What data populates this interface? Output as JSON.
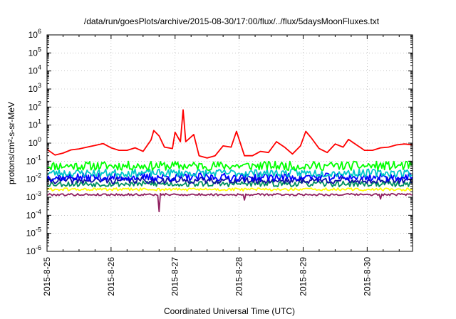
{
  "chart_data": {
    "type": "line",
    "title": "/data/run/goesPlots/archive/2015-08-30/17:00/flux/../flux/5daysMoonFluxes.txt",
    "xlabel": "Coordinated Universal Time (UTC)",
    "ylabel": "protons/cm²-s-sr-MeV",
    "yscale": "log",
    "ylim_exponents": [
      -6,
      6
    ],
    "y_ticks": [
      {
        "base": "10",
        "exp": "-6"
      },
      {
        "base": "10",
        "exp": "-5"
      },
      {
        "base": "10",
        "exp": "-4"
      },
      {
        "base": "10",
        "exp": "-3"
      },
      {
        "base": "10",
        "exp": "-2"
      },
      {
        "base": "10",
        "exp": "-1"
      },
      {
        "base": "10",
        "exp": "0"
      },
      {
        "base": "10",
        "exp": "1"
      },
      {
        "base": "10",
        "exp": "2"
      },
      {
        "base": "10",
        "exp": "3"
      },
      {
        "base": "10",
        "exp": "4"
      },
      {
        "base": "10",
        "exp": "5"
      },
      {
        "base": "10",
        "exp": "6"
      }
    ],
    "x_ticks": [
      "2015-8-25",
      "2015-8-26",
      "2015-8-27",
      "2015-8-28",
      "2015-8-29",
      "2015-8-30"
    ],
    "xlim": [
      "2015-08-25 00:00",
      "2015-08-30 17:00"
    ],
    "grid": true,
    "series": [
      {
        "color": "#ff0000",
        "points": [
          [
            "2015-08-25 00:00",
            0.45
          ],
          [
            "2015-08-25 03:00",
            0.22
          ],
          [
            "2015-08-25 06:00",
            0.28
          ],
          [
            "2015-08-25 09:00",
            0.42
          ],
          [
            "2015-08-25 12:00",
            0.48
          ],
          [
            "2015-08-25 15:00",
            0.6
          ],
          [
            "2015-08-25 18:00",
            0.75
          ],
          [
            "2015-08-25 21:00",
            0.95
          ],
          [
            "2015-08-26 00:00",
            0.55
          ],
          [
            "2015-08-26 03:00",
            0.4
          ],
          [
            "2015-08-26 06:00",
            0.4
          ],
          [
            "2015-08-26 09:00",
            0.55
          ],
          [
            "2015-08-26 12:00",
            0.35
          ],
          [
            "2015-08-26 15:00",
            1.5
          ],
          [
            "2015-08-26 16:00",
            5
          ],
          [
            "2015-08-26 18:00",
            2.5
          ],
          [
            "2015-08-26 20:00",
            0.6
          ],
          [
            "2015-08-26 23:00",
            0.5
          ],
          [
            "2015-08-27 00:00",
            4
          ],
          [
            "2015-08-27 02:00",
            1.2
          ],
          [
            "2015-08-27 03:00",
            70
          ],
          [
            "2015-08-27 04:00",
            1.2
          ],
          [
            "2015-08-27 07:00",
            3
          ],
          [
            "2015-08-27 09:00",
            0.2
          ],
          [
            "2015-08-27 12:00",
            0.15
          ],
          [
            "2015-08-27 15:00",
            0.2
          ],
          [
            "2015-08-27 18:00",
            0.7
          ],
          [
            "2015-08-27 21:00",
            0.6
          ],
          [
            "2015-08-27 23:00",
            4.5
          ],
          [
            "2015-08-28 02:00",
            0.2
          ],
          [
            "2015-08-28 05:00",
            0.2
          ],
          [
            "2015-08-28 08:00",
            0.35
          ],
          [
            "2015-08-28 11:00",
            0.3
          ],
          [
            "2015-08-28 14:00",
            1.2
          ],
          [
            "2015-08-28 17:00",
            0.6
          ],
          [
            "2015-08-28 20:00",
            0.25
          ],
          [
            "2015-08-28 23:00",
            0.7
          ],
          [
            "2015-08-29 01:00",
            4.5
          ],
          [
            "2015-08-29 03:00",
            2
          ],
          [
            "2015-08-29 06:00",
            0.5
          ],
          [
            "2015-08-29 09:00",
            0.3
          ],
          [
            "2015-08-29 12:00",
            0.9
          ],
          [
            "2015-08-29 15:00",
            0.6
          ],
          [
            "2015-08-29 17:00",
            1.6
          ],
          [
            "2015-08-29 20:00",
            0.8
          ],
          [
            "2015-08-29 23:00",
            0.4
          ],
          [
            "2015-08-30 02:00",
            0.4
          ],
          [
            "2015-08-30 05:00",
            0.55
          ],
          [
            "2015-08-30 08:00",
            0.6
          ],
          [
            "2015-08-30 11:00",
            0.8
          ],
          [
            "2015-08-30 14:00",
            0.9
          ],
          [
            "2015-08-30 17:00",
            0.8
          ]
        ]
      },
      {
        "color": "#00ff00",
        "level": 0.055,
        "spread": 0.25,
        "seed": 11
      },
      {
        "color": "#00c8c8",
        "level": 0.022,
        "spread": 0.22,
        "seed": 23
      },
      {
        "color": "#0000ff",
        "level": 0.013,
        "spread": 0.22,
        "seed": 37
      },
      {
        "color": "#1010a0",
        "level": 0.0085,
        "spread": 0.18,
        "seed": 41
      },
      {
        "color": "#009060",
        "level": 0.0055,
        "spread": 0.16,
        "seed": 53
      },
      {
        "color": "#ffff00",
        "level": 0.0027,
        "spread": 0.08,
        "seed": 61
      },
      {
        "color": "#902060",
        "level": 0.0014,
        "spread": 0.06,
        "seed": 79,
        "dips": [
          [
            "2015-08-26 18:00",
            0.00016
          ],
          [
            "2015-08-28 02:00",
            0.0007
          ],
          [
            "2015-08-30 05:00",
            0.0008
          ]
        ]
      }
    ]
  }
}
